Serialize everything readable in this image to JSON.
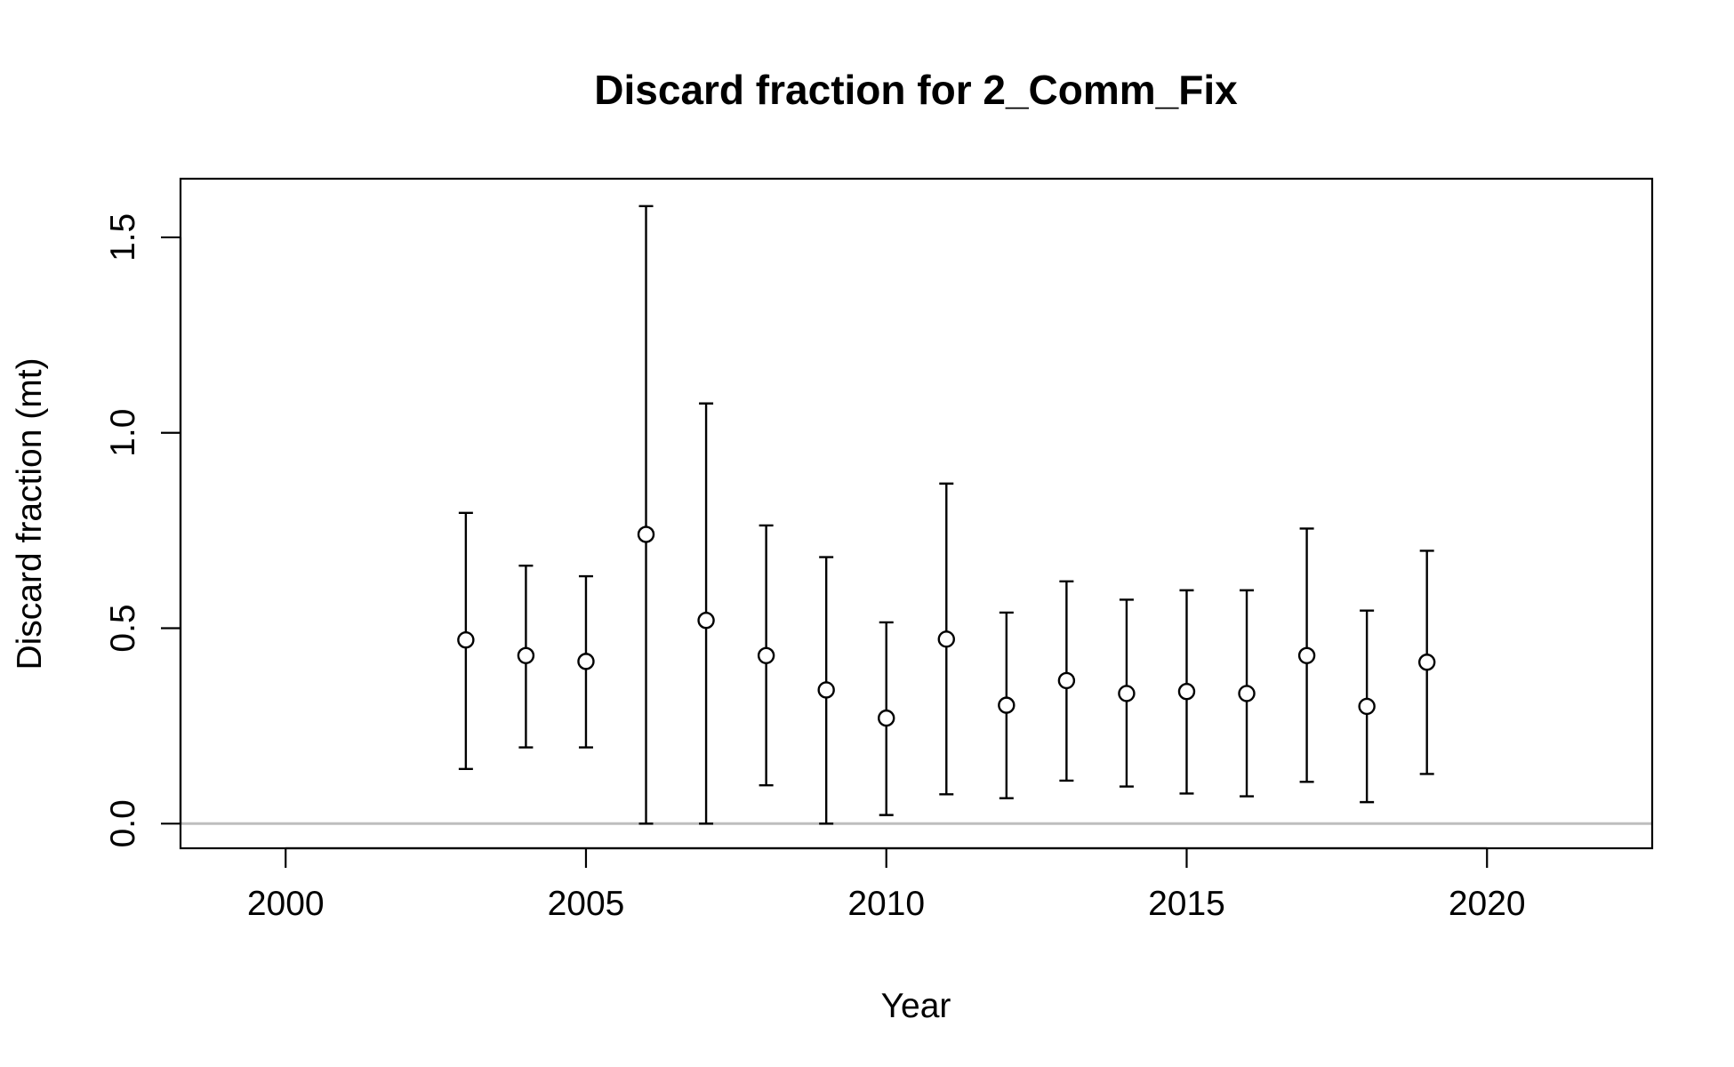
{
  "chart_data": {
    "type": "scatter",
    "title": "Discard fraction for 2_Comm_Fix",
    "xlabel": "Year",
    "ylabel": "Discard fraction (mt)",
    "xlim": [
      1998.25,
      2022.75
    ],
    "ylim": [
      -0.063,
      1.65
    ],
    "xticks": [
      2000,
      2005,
      2010,
      2015,
      2020
    ],
    "xtick_labels": [
      "2000",
      "2005",
      "2010",
      "2015",
      "2020"
    ],
    "yticks": [
      0,
      0.5,
      1,
      1.5
    ],
    "ytick_labels": [
      "0.0",
      "0.5",
      "1.0",
      "1.5"
    ],
    "grid": false,
    "legend": "none",
    "reference_line": {
      "y": 0,
      "color": "#bebebe"
    },
    "series": [
      {
        "points": [
          {
            "x": 2003,
            "y": 0.47,
            "lower": 0.14,
            "upper": 0.795
          },
          {
            "x": 2004,
            "y": 0.43,
            "lower": 0.195,
            "upper": 0.66
          },
          {
            "x": 2005,
            "y": 0.415,
            "lower": 0.195,
            "upper": 0.633
          },
          {
            "x": 2006,
            "y": 0.74,
            "lower": 0.0,
            "upper": 1.58
          },
          {
            "x": 2007,
            "y": 0.52,
            "lower": 0.0,
            "upper": 1.075
          },
          {
            "x": 2008,
            "y": 0.43,
            "lower": 0.098,
            "upper": 0.763
          },
          {
            "x": 2009,
            "y": 0.342,
            "lower": 0.0,
            "upper": 0.682
          },
          {
            "x": 2010,
            "y": 0.27,
            "lower": 0.022,
            "upper": 0.515
          },
          {
            "x": 2011,
            "y": 0.472,
            "lower": 0.075,
            "upper": 0.87
          },
          {
            "x": 2012,
            "y": 0.303,
            "lower": 0.065,
            "upper": 0.54
          },
          {
            "x": 2013,
            "y": 0.366,
            "lower": 0.11,
            "upper": 0.62
          },
          {
            "x": 2014,
            "y": 0.333,
            "lower": 0.095,
            "upper": 0.573
          },
          {
            "x": 2015,
            "y": 0.338,
            "lower": 0.077,
            "upper": 0.597
          },
          {
            "x": 2016,
            "y": 0.333,
            "lower": 0.07,
            "upper": 0.597
          },
          {
            "x": 2017,
            "y": 0.43,
            "lower": 0.107,
            "upper": 0.755
          },
          {
            "x": 2018,
            "y": 0.3,
            "lower": 0.055,
            "upper": 0.545
          },
          {
            "x": 2019,
            "y": 0.413,
            "lower": 0.127,
            "upper": 0.698
          }
        ]
      }
    ]
  }
}
